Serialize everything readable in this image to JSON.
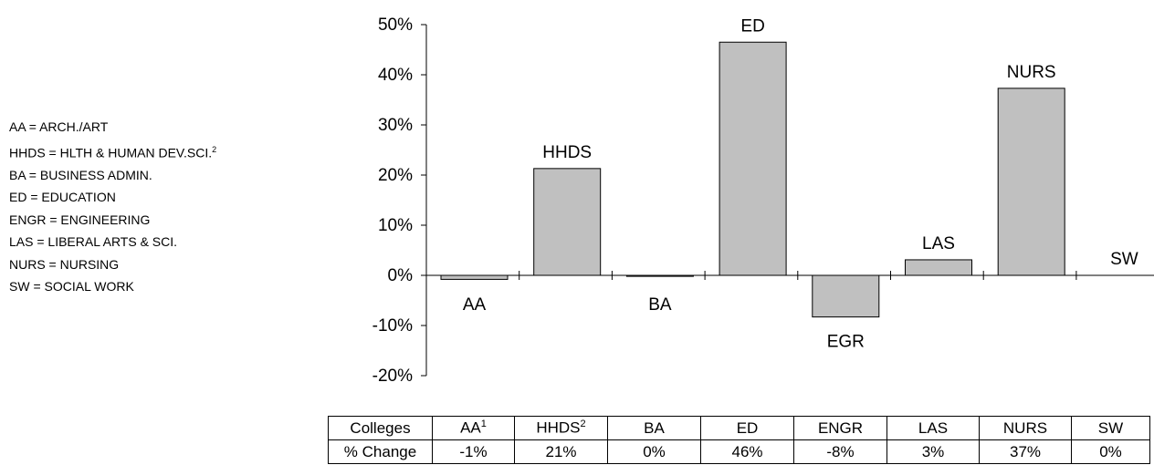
{
  "legend": [
    {
      "text": "AA = ARCH./ART",
      "sup": ""
    },
    {
      "text": "HHDS = HLTH  & HUMAN DEV.SCI.",
      "sup": "2"
    },
    {
      "text": "BA  = BUSINESS ADMIN.",
      "sup": ""
    },
    {
      "text": "ED  = EDUCATION",
      "sup": ""
    },
    {
      "text": "ENGR = ENGINEERING",
      "sup": ""
    },
    {
      "text": "LAS = LIBERAL ARTS & SCI.",
      "sup": ""
    },
    {
      "text": "NURS = NURSING",
      "sup": ""
    },
    {
      "text": "SW  = SOCIAL WORK",
      "sup": ""
    }
  ],
  "chart_data": {
    "type": "bar",
    "categories": [
      "AA",
      "HHDS",
      "BA",
      "ED",
      "EGR",
      "LAS",
      "NURS",
      "SW"
    ],
    "values": [
      -0.8,
      21.3,
      -0.2,
      46.5,
      -8.3,
      3.1,
      37.3,
      0
    ],
    "ylim": [
      -20,
      50
    ],
    "yticks": [
      -20,
      -10,
      0,
      10,
      20,
      30,
      40,
      50
    ],
    "ytick_labels": [
      "-20%",
      "-10%",
      "0%",
      "10%",
      "20%",
      "30%",
      "40%",
      "50%"
    ],
    "bar_color": "#c0c0c0",
    "grid": false
  },
  "table": {
    "header_label": "Colleges",
    "row_label": "% Change",
    "columns": [
      {
        "name": "AA",
        "sup": "1",
        "value": "-1%"
      },
      {
        "name": "HHDS",
        "sup": "2",
        "value": "21%"
      },
      {
        "name": "BA",
        "sup": "",
        "value": "0%"
      },
      {
        "name": "ED",
        "sup": "",
        "value": "46%"
      },
      {
        "name": "ENGR",
        "sup": "",
        "value": "-8%"
      },
      {
        "name": "LAS",
        "sup": "",
        "value": "3%"
      },
      {
        "name": "NURS",
        "sup": "",
        "value": "37%"
      },
      {
        "name": "SW",
        "sup": "",
        "value": "0%"
      }
    ]
  }
}
